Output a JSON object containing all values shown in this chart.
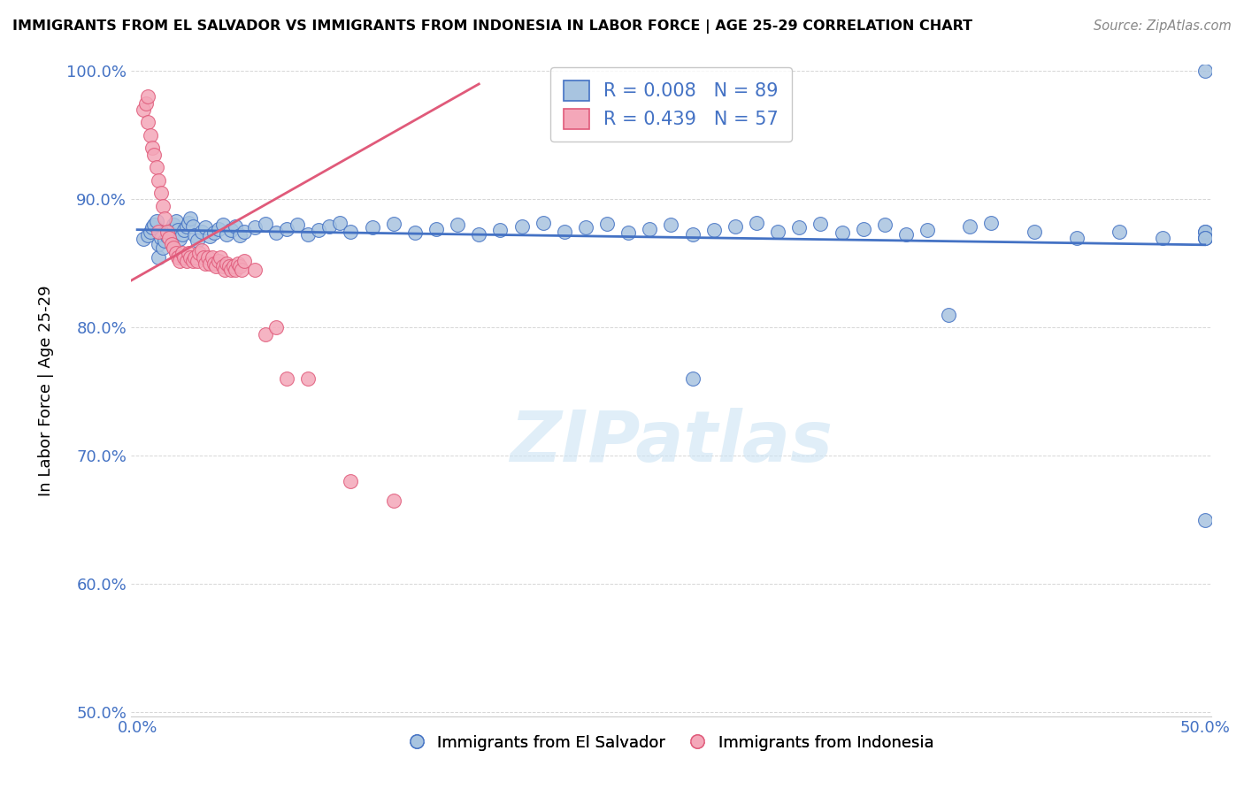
{
  "title": "IMMIGRANTS FROM EL SALVADOR VS IMMIGRANTS FROM INDONESIA IN LABOR FORCE | AGE 25-29 CORRELATION CHART",
  "source": "Source: ZipAtlas.com",
  "ylabel": "In Labor Force | Age 25-29",
  "legend_label_blue": "Immigrants from El Salvador",
  "legend_label_pink": "Immigrants from Indonesia",
  "R_blue": 0.008,
  "N_blue": 89,
  "R_pink": 0.439,
  "N_pink": 57,
  "x_min": 0.0,
  "x_max": 0.5,
  "y_min": 0.5,
  "y_max": 1.005,
  "color_blue": "#a8c4e0",
  "color_pink": "#f4a7b9",
  "trend_blue": "#4472c4",
  "trend_pink": "#e05a7a",
  "background": "#ffffff",
  "blue_x": [
    0.003,
    0.005,
    0.006,
    0.007,
    0.008,
    0.009,
    0.01,
    0.01,
    0.011,
    0.012,
    0.013,
    0.014,
    0.015,
    0.016,
    0.017,
    0.018,
    0.019,
    0.02,
    0.021,
    0.022,
    0.023,
    0.024,
    0.025,
    0.026,
    0.027,
    0.028,
    0.03,
    0.032,
    0.034,
    0.036,
    0.038,
    0.04,
    0.042,
    0.044,
    0.046,
    0.048,
    0.05,
    0.055,
    0.06,
    0.065,
    0.07,
    0.075,
    0.08,
    0.085,
    0.09,
    0.095,
    0.1,
    0.11,
    0.12,
    0.13,
    0.14,
    0.15,
    0.16,
    0.17,
    0.18,
    0.19,
    0.2,
    0.21,
    0.22,
    0.23,
    0.24,
    0.25,
    0.26,
    0.27,
    0.28,
    0.29,
    0.3,
    0.31,
    0.32,
    0.33,
    0.34,
    0.35,
    0.36,
    0.37,
    0.39,
    0.4,
    0.26,
    0.38,
    0.42,
    0.44,
    0.46,
    0.48,
    0.5,
    0.5,
    0.5,
    0.5,
    0.5,
    0.5,
    0.5
  ],
  "blue_y": [
    0.869,
    0.872,
    0.875,
    0.878,
    0.88,
    0.883,
    0.855,
    0.865,
    0.87,
    0.862,
    0.868,
    0.871,
    0.874,
    0.877,
    0.88,
    0.883,
    0.876,
    0.869,
    0.873,
    0.876,
    0.879,
    0.882,
    0.885,
    0.879,
    0.872,
    0.868,
    0.875,
    0.878,
    0.871,
    0.874,
    0.877,
    0.88,
    0.873,
    0.876,
    0.879,
    0.872,
    0.875,
    0.878,
    0.881,
    0.874,
    0.877,
    0.88,
    0.873,
    0.876,
    0.879,
    0.882,
    0.875,
    0.878,
    0.881,
    0.874,
    0.877,
    0.88,
    0.873,
    0.876,
    0.879,
    0.882,
    0.875,
    0.878,
    0.881,
    0.874,
    0.877,
    0.88,
    0.873,
    0.876,
    0.879,
    0.882,
    0.875,
    0.878,
    0.881,
    0.874,
    0.877,
    0.88,
    0.873,
    0.876,
    0.879,
    0.882,
    0.76,
    0.81,
    0.875,
    0.87,
    0.875,
    0.87,
    0.875,
    0.87,
    0.875,
    0.87,
    0.87,
    1.0,
    0.65
  ],
  "pink_x": [
    0.003,
    0.004,
    0.005,
    0.005,
    0.006,
    0.007,
    0.008,
    0.009,
    0.01,
    0.01,
    0.011,
    0.012,
    0.013,
    0.014,
    0.015,
    0.016,
    0.017,
    0.018,
    0.019,
    0.02,
    0.021,
    0.022,
    0.023,
    0.024,
    0.025,
    0.026,
    0.027,
    0.028,
    0.029,
    0.03,
    0.031,
    0.032,
    0.033,
    0.034,
    0.035,
    0.036,
    0.037,
    0.038,
    0.039,
    0.04,
    0.041,
    0.042,
    0.043,
    0.044,
    0.045,
    0.046,
    0.047,
    0.048,
    0.049,
    0.05,
    0.055,
    0.06,
    0.065,
    0.07,
    0.08,
    0.1,
    0.12
  ],
  "pink_y": [
    0.97,
    0.975,
    0.98,
    0.96,
    0.95,
    0.94,
    0.935,
    0.925,
    0.915,
    0.875,
    0.905,
    0.895,
    0.885,
    0.875,
    0.87,
    0.865,
    0.862,
    0.858,
    0.855,
    0.852,
    0.858,
    0.855,
    0.852,
    0.858,
    0.855,
    0.852,
    0.855,
    0.852,
    0.858,
    0.86,
    0.855,
    0.85,
    0.855,
    0.85,
    0.855,
    0.85,
    0.848,
    0.852,
    0.855,
    0.848,
    0.845,
    0.85,
    0.848,
    0.845,
    0.848,
    0.845,
    0.85,
    0.848,
    0.845,
    0.852,
    0.845,
    0.795,
    0.8,
    0.76,
    0.76,
    0.68,
    0.665
  ],
  "trend_blue_slope": 0.0,
  "trend_blue_intercept": 0.873,
  "trend_pink_x0": -0.005,
  "trend_pink_x1": 0.185,
  "watermark_text": "ZIPatlas"
}
